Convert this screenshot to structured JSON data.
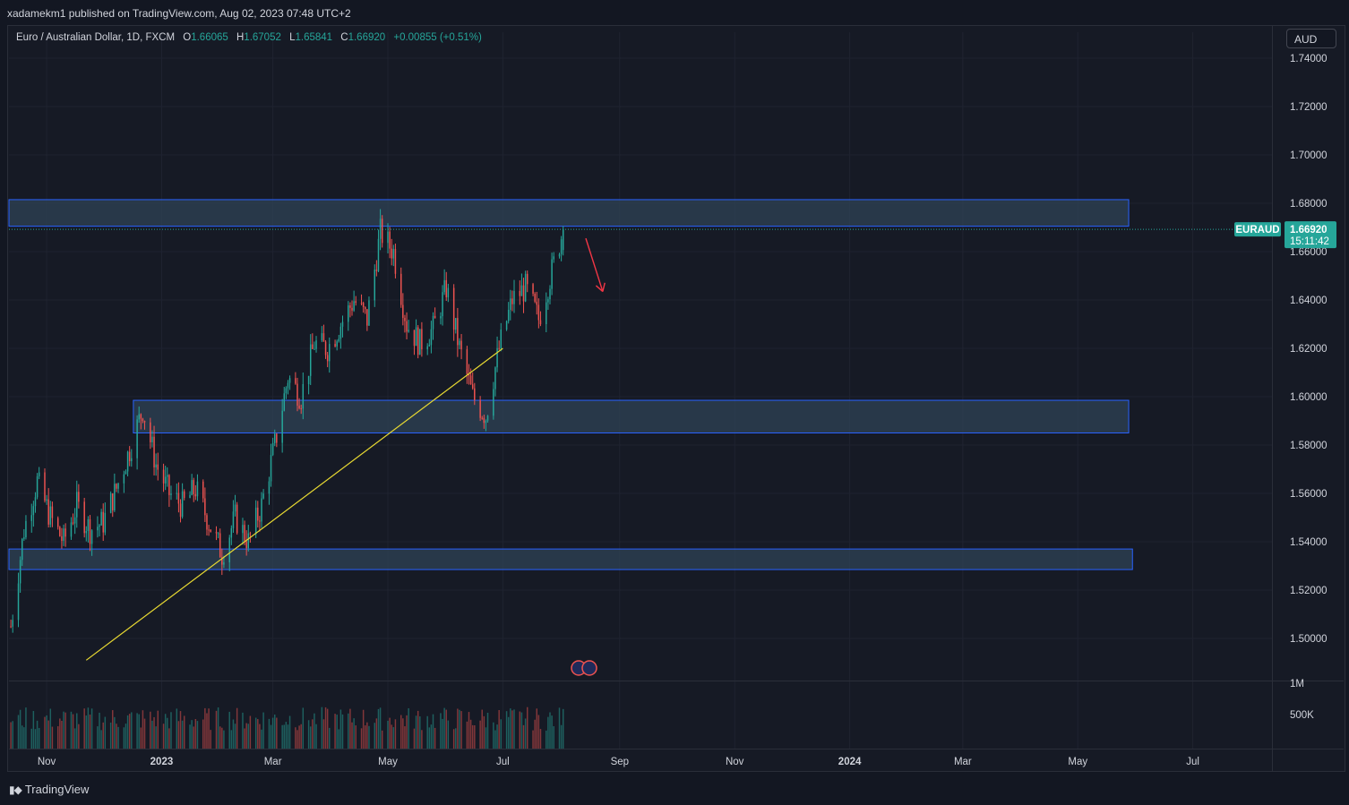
{
  "header": {
    "published": "xadamekm1 published on TradingView.com, Aug 02, 2023 07:48 UTC+2"
  },
  "legend": {
    "symbol": "Euro / Australian Dollar, 1D, FXCM",
    "o_label": "O",
    "o": "1.66065",
    "h_label": "H",
    "h": "1.67052",
    "l_label": "L",
    "l": "1.65841",
    "c_label": "C",
    "c": "1.66920",
    "change": "+0.00855 (+0.51%)"
  },
  "currency_button": "AUD",
  "price_tag": {
    "ticker": "EURAUD",
    "price": "1.66920",
    "countdown": "15:11:42"
  },
  "volume_labels": [
    "1M",
    "500K"
  ],
  "footer": {
    "brand": "TradingView"
  },
  "colors": {
    "up": "#26a69a",
    "down": "#ef5350",
    "zone_border": "#2962ff",
    "zone_fill": "#2f4355",
    "trendline": "#e8d932",
    "arrow": "#f23645"
  },
  "chart_data": {
    "type": "candlestick",
    "symbol": "EURAUD",
    "timeframe": "1D",
    "ylim": [
      1.49,
      1.74
    ],
    "y_ticks": [
      1.5,
      1.52,
      1.54,
      1.56,
      1.58,
      1.6,
      1.62,
      1.64,
      1.66,
      1.68,
      1.7,
      1.72,
      1.74
    ],
    "y_tick_labels": [
      "1.50000",
      "1.52000",
      "1.54000",
      "1.56000",
      "1.58000",
      "1.60000",
      "1.62000",
      "1.64000",
      "1.66000",
      "1.68000",
      "1.70000",
      "1.72000",
      "1.74000"
    ],
    "x_range": [
      "2022-10-12",
      "2024-08-12"
    ],
    "x_ticks": [
      {
        "date": "2022-11-01",
        "label": "Nov"
      },
      {
        "date": "2023-01-01",
        "label": "2023"
      },
      {
        "date": "2023-03-01",
        "label": "Mar"
      },
      {
        "date": "2023-05-01",
        "label": "May"
      },
      {
        "date": "2023-07-01",
        "label": "Jul"
      },
      {
        "date": "2023-09-01",
        "label": "Sep"
      },
      {
        "date": "2023-11-01",
        "label": "Nov"
      },
      {
        "date": "2024-01-01",
        "label": "2024"
      },
      {
        "date": "2024-03-01",
        "label": "Mar"
      },
      {
        "date": "2024-05-01",
        "label": "May"
      },
      {
        "date": "2024-07-01",
        "label": "Jul"
      }
    ],
    "price_path": [
      [
        "2022-10-13",
        1.505
      ],
      [
        "2022-10-20",
        1.545
      ],
      [
        "2022-10-27",
        1.565
      ],
      [
        "2022-11-03",
        1.55
      ],
      [
        "2022-11-10",
        1.54
      ],
      [
        "2022-11-17",
        1.555
      ],
      [
        "2022-11-24",
        1.545
      ],
      [
        "2022-12-01",
        1.548
      ],
      [
        "2022-12-08",
        1.562
      ],
      [
        "2022-12-15",
        1.578
      ],
      [
        "2022-12-22",
        1.595
      ],
      [
        "2022-12-29",
        1.572
      ],
      [
        "2023-01-05",
        1.56
      ],
      [
        "2023-01-12",
        1.555
      ],
      [
        "2023-01-19",
        1.562
      ],
      [
        "2023-01-26",
        1.548
      ],
      [
        "2023-02-02",
        1.535
      ],
      [
        "2023-02-09",
        1.55
      ],
      [
        "2023-02-16",
        1.54
      ],
      [
        "2023-02-23",
        1.555
      ],
      [
        "2023-03-02",
        1.58
      ],
      [
        "2023-03-09",
        1.608
      ],
      [
        "2023-03-16",
        1.6
      ],
      [
        "2023-03-23",
        1.622
      ],
      [
        "2023-03-30",
        1.62
      ],
      [
        "2023-04-06",
        1.63
      ],
      [
        "2023-04-13",
        1.64
      ],
      [
        "2023-04-20",
        1.632
      ],
      [
        "2023-04-27",
        1.668
      ],
      [
        "2023-05-04",
        1.66
      ],
      [
        "2023-05-11",
        1.63
      ],
      [
        "2023-05-18",
        1.622
      ],
      [
        "2023-05-25",
        1.628
      ],
      [
        "2023-06-01",
        1.645
      ],
      [
        "2023-06-08",
        1.62
      ],
      [
        "2023-06-15",
        1.6
      ],
      [
        "2023-06-22",
        1.592
      ],
      [
        "2023-06-29",
        1.62
      ],
      [
        "2023-07-06",
        1.64
      ],
      [
        "2023-07-13",
        1.645
      ],
      [
        "2023-07-20",
        1.632
      ],
      [
        "2023-07-27",
        1.652
      ],
      [
        "2023-08-02",
        1.6692
      ]
    ],
    "zones": [
      {
        "from": "2022-10-12",
        "to": "2024-05-28",
        "low": 1.6705,
        "high": 1.6815
      },
      {
        "from": "2022-12-17",
        "to": "2024-05-28",
        "low": 1.585,
        "high": 1.5985
      },
      {
        "from": "2022-10-12",
        "to": "2024-05-30",
        "low": 1.5285,
        "high": 1.537
      }
    ],
    "trendline": {
      "from": [
        "2022-11-22",
        1.491
      ],
      "to": [
        "2023-07-01",
        1.62
      ]
    },
    "arrow": {
      "from": [
        "2023-08-14",
        1.6655
      ],
      "to": [
        "2023-08-23",
        1.6435
      ]
    },
    "volume_max": 1000000,
    "volume_ticks": [
      1000000,
      500000
    ],
    "last_price": 1.6692
  }
}
